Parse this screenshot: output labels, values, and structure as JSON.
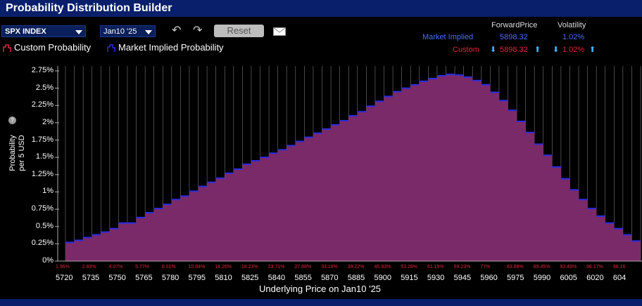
{
  "window": {
    "title": "Probability Distribution Builder"
  },
  "toolbar": {
    "symbol": "SPX INDEX",
    "expiry": "Jan10 '25",
    "reset_label": "Reset"
  },
  "legend": {
    "custom": "Custom Probability",
    "market": "Market Implied Probability"
  },
  "stats": {
    "header_forward": "ForwardPrice",
    "header_vol": "Volatility",
    "market_label": "Market Implied",
    "market_forward": "5898.32",
    "market_vol": "1.02%",
    "custom_label": "Custom",
    "custom_forward": "5898.32",
    "custom_vol": "1.02%"
  },
  "axes": {
    "ylabel_line1": "Probability",
    "ylabel_line2": "per 5 USD",
    "xlabel": "Underlying Price on Jan10 '25",
    "yticks": [
      "2.75%",
      "2.5%",
      "2.25%",
      "2%",
      "1.75%",
      "1.5%",
      "1.25%",
      "1%",
      "0.75%",
      "0.5%",
      "0.25%",
      "0%"
    ],
    "xticks": [
      "5720",
      "5735",
      "5750",
      "5765",
      "5780",
      "5795",
      "5810",
      "5825",
      "5840",
      "5855",
      "5870",
      "5885",
      "5900",
      "5915",
      "5930",
      "5945",
      "5960",
      "5975",
      "5990",
      "6005",
      "6020",
      "604"
    ],
    "cum_labels": [
      "1.96%",
      "2.83%",
      "4.07%",
      "5.77%",
      "8.01%",
      "10.84%",
      "14.26%",
      "18.23%",
      "23.71%",
      "27.88%",
      "33.16%",
      "39.22%",
      "45.93%",
      "53.28%",
      "61.15%",
      "69.23%",
      "77%",
      "83.88%",
      "89.45%",
      "93.49%",
      "96.17%",
      "98.16"
    ]
  },
  "colors": {
    "bar_fill": "#7a2a68",
    "bar_top": "#2c2ce0",
    "custom_text": "#e0263a",
    "market_text": "#4a6cff",
    "grid": "#777777"
  },
  "chart_data": {
    "type": "bar",
    "title": "",
    "xlabel": "Underlying Price on Jan10 '25",
    "ylabel": "Probability per 5 USD",
    "ylim": [
      0,
      2.75
    ],
    "categories": [
      "5720",
      "5725",
      "5730",
      "5735",
      "5740",
      "5745",
      "5750",
      "5755",
      "5760",
      "5765",
      "5770",
      "5775",
      "5780",
      "5785",
      "5790",
      "5795",
      "5800",
      "5805",
      "5810",
      "5815",
      "5820",
      "5825",
      "5830",
      "5835",
      "5840",
      "5845",
      "5850",
      "5855",
      "5860",
      "5865",
      "5870",
      "5875",
      "5880",
      "5885",
      "5890",
      "5895",
      "5900",
      "5905",
      "5910",
      "5915",
      "5920",
      "5925",
      "5930",
      "5935",
      "5940",
      "5945",
      "5950",
      "5955",
      "5960",
      "5965",
      "5970",
      "5975",
      "5980",
      "5985",
      "5990",
      "5995",
      "6000",
      "6005",
      "6010",
      "6015",
      "6020",
      "6025",
      "6030",
      "6035",
      "6040"
    ],
    "values": [
      0.27,
      0.3,
      0.34,
      0.38,
      0.42,
      0.47,
      0.55,
      0.55,
      0.63,
      0.7,
      0.76,
      0.82,
      0.89,
      0.94,
      1.01,
      1.08,
      1.14,
      1.2,
      1.27,
      1.33,
      1.4,
      1.45,
      1.5,
      1.56,
      1.61,
      1.67,
      1.73,
      1.79,
      1.85,
      1.91,
      1.97,
      2.03,
      2.1,
      2.16,
      2.24,
      2.31,
      2.38,
      2.45,
      2.5,
      2.55,
      2.6,
      2.64,
      2.68,
      2.7,
      2.69,
      2.66,
      2.61,
      2.55,
      2.44,
      2.32,
      2.18,
      2.02,
      1.86,
      1.69,
      1.53,
      1.36,
      1.19,
      1.03,
      0.89,
      0.76,
      0.65,
      0.55,
      0.47,
      0.38,
      0.29
    ],
    "series": [
      {
        "name": "Custom Probability"
      },
      {
        "name": "Market Implied Probability"
      }
    ],
    "legend": "top-left",
    "grid": true
  }
}
